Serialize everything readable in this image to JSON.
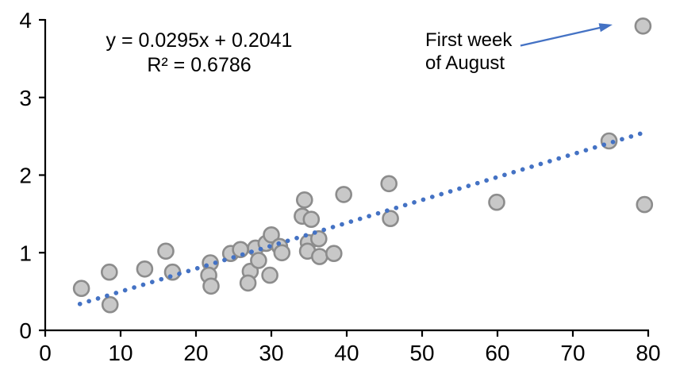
{
  "chart_data": {
    "type": "scatter",
    "title": "",
    "xlabel": "",
    "ylabel": "",
    "xlim": [
      0,
      80
    ],
    "ylim": [
      0,
      4
    ],
    "grid": false,
    "legend": false,
    "xticks": [
      0,
      10,
      20,
      30,
      40,
      50,
      60,
      70,
      80
    ],
    "yticks": [
      0,
      1,
      2,
      3,
      4
    ],
    "points": [
      [
        4.8,
        0.54
      ],
      [
        8.5,
        0.75
      ],
      [
        8.6,
        0.33
      ],
      [
        13.2,
        0.79
      ],
      [
        16.0,
        1.02
      ],
      [
        16.9,
        0.75
      ],
      [
        21.9,
        0.87
      ],
      [
        21.7,
        0.71
      ],
      [
        22.0,
        0.57
      ],
      [
        24.6,
        0.99
      ],
      [
        25.9,
        1.04
      ],
      [
        27.2,
        0.76
      ],
      [
        26.9,
        0.61
      ],
      [
        27.9,
        1.06
      ],
      [
        28.3,
        0.9
      ],
      [
        29.3,
        1.12
      ],
      [
        30.0,
        1.23
      ],
      [
        29.8,
        0.71
      ],
      [
        31.1,
        1.08
      ],
      [
        31.4,
        1.0
      ],
      [
        34.4,
        1.68
      ],
      [
        34.1,
        1.47
      ],
      [
        35.3,
        1.43
      ],
      [
        34.9,
        1.13
      ],
      [
        36.3,
        1.18
      ],
      [
        34.8,
        1.02
      ],
      [
        36.4,
        0.95
      ],
      [
        38.3,
        0.99
      ],
      [
        39.6,
        1.75
      ],
      [
        45.6,
        1.89
      ],
      [
        45.8,
        1.44
      ],
      [
        59.9,
        1.65
      ],
      [
        74.8,
        2.44
      ],
      [
        79.3,
        3.92
      ],
      [
        79.5,
        1.62
      ]
    ],
    "trendline": {
      "slope": 0.0295,
      "intercept": 0.2041,
      "x_start": 4.6,
      "x_end": 79.0,
      "style": "dotted"
    },
    "equation_label": {
      "line1": "y = 0.0295x + 0.2041",
      "line2": "R² = 0.6786"
    },
    "annotation": {
      "line1": "First week",
      "line2": "of August",
      "target_point": [
        79.3,
        3.92
      ]
    },
    "colors": {
      "trendline": "#4472c4",
      "arrow": "#4472c4",
      "marker_fill": "#c8c8c8",
      "marker_stroke": "#8c8c8c",
      "axis": "#000000",
      "text": "#000000"
    }
  }
}
